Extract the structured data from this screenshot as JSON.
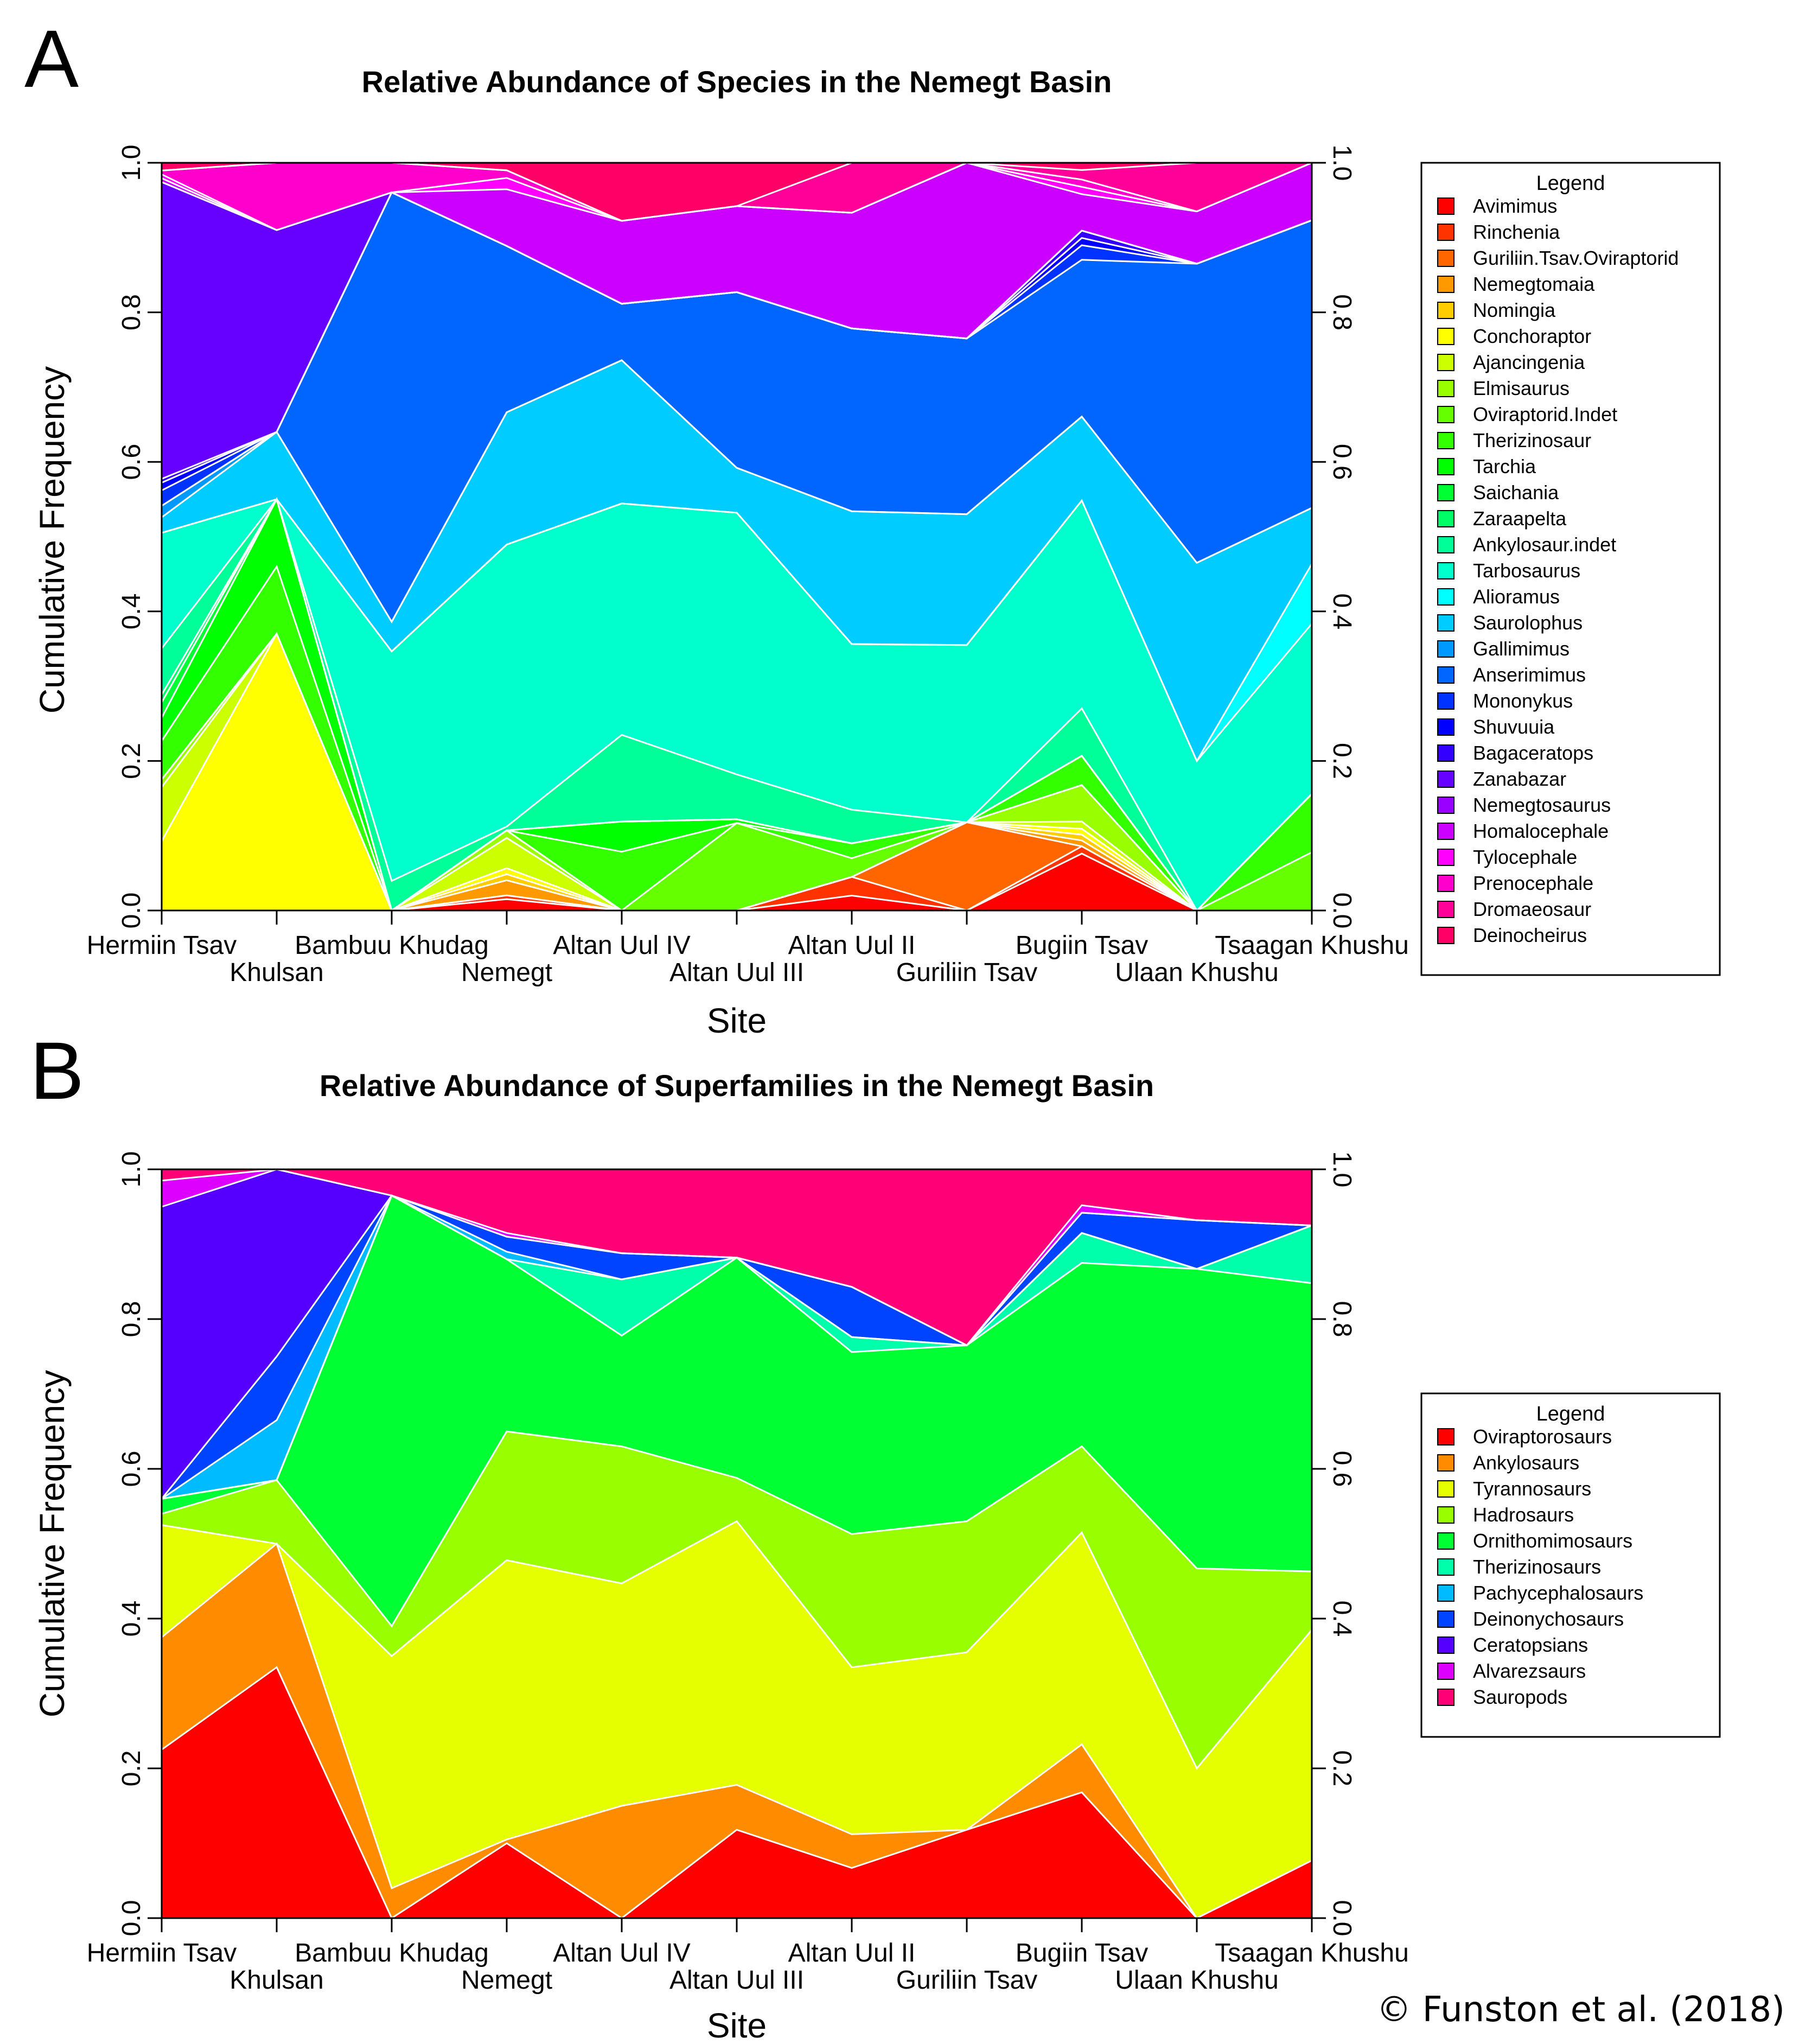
{
  "credit": "© Funston et al. (2018)",
  "chart_data": [
    {
      "panel_label": "A",
      "type": "area",
      "stacked": true,
      "title": "Relative Abundance of Species in the Nemegt Basin",
      "xlabel": "Site",
      "ylabel": "Cumulative Frequency",
      "ylim": [
        0,
        1
      ],
      "yticks": [
        "0.0",
        "0.2",
        "0.4",
        "0.6",
        "0.8",
        "1.0"
      ],
      "categories": [
        "Hermiin Tsav",
        "Khulsan",
        "Bambuu Khudag",
        "Nemegt",
        "Altan Uul IV",
        "Altan Uul III",
        "Altan Uul II",
        "Guriliin Tsav",
        "Bugiin Tsav",
        "Ulaan Khushu",
        "Tsaagan Khushu"
      ],
      "legend_title": "Legend",
      "legend_position": "right",
      "series": [
        {
          "name": "Avimimus",
          "color": "#FF0000",
          "values": [
            0,
            0,
            0,
            0.015,
            0,
            0,
            0.02,
            0,
            0.078,
            0,
            0
          ]
        },
        {
          "name": "Rinchenia",
          "color": "#FF3300",
          "values": [
            0,
            0,
            0,
            0.005,
            0,
            0,
            0.025,
            0,
            0.01,
            0,
            0
          ]
        },
        {
          "name": "Guriliin.Tsav.Oviraptorid",
          "color": "#FF6600",
          "values": [
            0,
            0,
            0,
            0,
            0,
            0,
            0,
            0.118,
            0,
            0,
            0
          ]
        },
        {
          "name": "Nemegtomaia",
          "color": "#FF9900",
          "values": [
            0,
            0,
            0,
            0.02,
            0,
            0,
            0,
            0,
            0.008,
            0,
            0
          ]
        },
        {
          "name": "Nomingia",
          "color": "#FFCC00",
          "values": [
            0,
            0,
            0,
            0.008,
            0,
            0,
            0,
            0,
            0.008,
            0,
            0
          ]
        },
        {
          "name": "Conchoraptor",
          "color": "#FFFF00",
          "values": [
            0.09,
            0.37,
            0,
            0.008,
            0,
            0,
            0,
            0,
            0.008,
            0,
            0
          ]
        },
        {
          "name": "Ajancingenia",
          "color": "#CCFF00",
          "values": [
            0.07,
            0,
            0,
            0.04,
            0,
            0,
            0,
            0,
            0.01,
            0,
            0
          ]
        },
        {
          "name": "Elmisaurus",
          "color": "#99FF00",
          "values": [
            0.01,
            0,
            0,
            0.01,
            0,
            0,
            0,
            0,
            0.05,
            0,
            0
          ]
        },
        {
          "name": "Oviraptorid.Indet",
          "color": "#66FF00",
          "values": [
            0,
            0,
            0,
            0,
            0,
            0.117,
            0.025,
            0,
            0,
            0,
            0.078
          ]
        },
        {
          "name": "Therizinosaur",
          "color": "#33FF00",
          "values": [
            0.05,
            0.09,
            0,
            0,
            0.078,
            0,
            0.02,
            0,
            0.04,
            0,
            0.078
          ]
        },
        {
          "name": "Tarchia",
          "color": "#00FF00",
          "values": [
            0.03,
            0.09,
            0,
            0,
            0.04,
            0.005,
            0,
            0,
            0,
            0,
            0
          ]
        },
        {
          "name": "Saichania",
          "color": "#00FF33",
          "values": [
            0.02,
            0,
            0,
            0,
            0,
            0,
            0,
            0,
            0,
            0,
            0
          ]
        },
        {
          "name": "Zaraapelta",
          "color": "#00FF66",
          "values": [
            0.01,
            0,
            0,
            0,
            0,
            0,
            0,
            0,
            0,
            0,
            0
          ]
        },
        {
          "name": "Ankylosaur.indet",
          "color": "#00FF99",
          "values": [
            0.06,
            0,
            0.04,
            0.005,
            0.115,
            0.06,
            0.045,
            0,
            0.065,
            0,
            0
          ]
        },
        {
          "name": "Tarbosaurus",
          "color": "#00FFCC",
          "values": [
            0.15,
            0,
            0.31,
            0.373,
            0.307,
            0.35,
            0.222,
            0.237,
            0.285,
            0.2,
            0.228
          ]
        },
        {
          "name": "Alioramus",
          "color": "#00FFFF",
          "values": [
            0,
            0,
            0,
            0,
            0,
            0,
            0,
            0,
            0,
            0,
            0.08
          ]
        },
        {
          "name": "Saurolophus",
          "color": "#00CCFF",
          "values": [
            0.02,
            0.09,
            0.04,
            0.175,
            0.19,
            0.06,
            0.178,
            0.175,
            0.115,
            0.265,
            0.075
          ]
        },
        {
          "name": "Gallimimus",
          "color": "#0099FF",
          "values": [
            0.015,
            0,
            0,
            0,
            0,
            0,
            0,
            0,
            0,
            0,
            0
          ]
        },
        {
          "name": "Anserimimus",
          "color": "#0066FF",
          "values": [
            0,
            0,
            0.58,
            0.22,
            0.075,
            0.235,
            0.245,
            0.235,
            0.215,
            0.4,
            0.385
          ]
        },
        {
          "name": "Mononykus",
          "color": "#0033FF",
          "values": [
            0.02,
            0,
            0,
            0,
            0,
            0,
            0,
            0,
            0.02,
            0,
            0
          ]
        },
        {
          "name": "Shuvuuia",
          "color": "#0000FF",
          "values": [
            0.01,
            0,
            0,
            0,
            0,
            0,
            0,
            0,
            0.01,
            0,
            0
          ]
        },
        {
          "name": "Bagaceratops",
          "color": "#3300FF",
          "values": [
            0.005,
            0,
            0,
            0,
            0,
            0,
            0,
            0,
            0.01,
            0,
            0
          ]
        },
        {
          "name": "Zanabazar",
          "color": "#6600FF",
          "values": [
            0.385,
            0.27,
            0,
            0,
            0,
            0,
            0,
            0,
            0,
            0,
            0
          ]
        },
        {
          "name": "Nemegtosaurus",
          "color": "#9900FF",
          "values": [
            0,
            0,
            0,
            0,
            0,
            0,
            0,
            0,
            0,
            0,
            0
          ]
        },
        {
          "name": "Homalocephale",
          "color": "#CC00FF",
          "values": [
            0.005,
            0,
            0,
            0.075,
            0.11,
            0.115,
            0.155,
            0.235,
            0.05,
            0.07,
            0.077
          ]
        },
        {
          "name": "Tylocephale",
          "color": "#FF00FF",
          "values": [
            0.005,
            0,
            0,
            0.015,
            0,
            0,
            0,
            0,
            0.01,
            0,
            0
          ]
        },
        {
          "name": "Prenocephale",
          "color": "#FF00CC",
          "values": [
            0.005,
            0.09,
            0.04,
            0.01,
            0,
            0,
            0,
            0,
            0.01,
            0,
            0
          ]
        },
        {
          "name": "Dromaeosaur",
          "color": "#FF0099",
          "values": [
            0,
            0,
            0,
            0,
            0,
            0,
            0.067,
            0,
            0.013,
            0.065,
            0
          ]
        },
        {
          "name": "Deinocheirus",
          "color": "#FF0066",
          "values": [
            0.01,
            0,
            0,
            0.01,
            0.077,
            0.058,
            0,
            0,
            0.01,
            0,
            0
          ]
        }
      ]
    },
    {
      "panel_label": "B",
      "type": "area",
      "stacked": true,
      "title": "Relative Abundance of Superfamilies in the Nemegt Basin",
      "xlabel": "Site",
      "ylabel": "Cumulative Frequency",
      "ylim": [
        0,
        1
      ],
      "yticks": [
        "0.0",
        "0.2",
        "0.4",
        "0.6",
        "0.8",
        "1.0"
      ],
      "categories": [
        "Hermiin Tsav",
        "Khulsan",
        "Bambuu Khudag",
        "Nemegt",
        "Altan Uul IV",
        "Altan Uul III",
        "Altan Uul II",
        "Guriliin Tsav",
        "Bugiin Tsav",
        "Ulaan Khushu",
        "Tsaagan Khushu"
      ],
      "legend_title": "Legend",
      "legend_position": "right",
      "series": [
        {
          "name": "Oviraptorosaurs",
          "color": "#FF0000",
          "values": [
            0.225,
            0.335,
            0,
            0.1,
            0,
            0.118,
            0.067,
            0.118,
            0.168,
            0,
            0.077
          ]
        },
        {
          "name": "Ankylosaurs",
          "color": "#FF8C00",
          "values": [
            0.15,
            0.165,
            0.04,
            0.005,
            0.15,
            0.06,
            0.045,
            0,
            0.064,
            0,
            0
          ]
        },
        {
          "name": "Tyrannosaurs",
          "color": "#E5FF00",
          "values": [
            0.15,
            0,
            0.31,
            0.373,
            0.297,
            0.352,
            0.223,
            0.237,
            0.283,
            0.2,
            0.308
          ]
        },
        {
          "name": "Hadrosaurs",
          "color": "#99FF00",
          "values": [
            0.015,
            0.085,
            0.04,
            0.172,
            0.183,
            0.058,
            0.178,
            0.175,
            0.115,
            0.267,
            0.078
          ]
        },
        {
          "name": "Ornithomimosaurs",
          "color": "#00FF33",
          "values": [
            0.02,
            0,
            0.575,
            0.23,
            0.148,
            0.294,
            0.243,
            0.235,
            0.245,
            0.4,
            0.385
          ]
        },
        {
          "name": "Therizinosaurs",
          "color": "#00FFAA",
          "values": [
            0,
            0,
            0,
            0,
            0.075,
            0,
            0.02,
            0,
            0.04,
            0,
            0.077
          ]
        },
        {
          "name": "Pachycephalosaurs",
          "color": "#00BBFF",
          "values": [
            0,
            0.08,
            0,
            0.01,
            0,
            0,
            0,
            0,
            0,
            0,
            0
          ]
        },
        {
          "name": "Deinonychosaurs",
          "color": "#0044FF",
          "values": [
            0,
            0.085,
            0,
            0.02,
            0.035,
            0,
            0.067,
            0,
            0.027,
            0.065,
            0
          ]
        },
        {
          "name": "Ceratopsians",
          "color": "#5500FF",
          "values": [
            0.39,
            0.25,
            0,
            0,
            0,
            0,
            0,
            0,
            0,
            0,
            0
          ]
        },
        {
          "name": "Alvarezsaurs",
          "color": "#DD00FF",
          "values": [
            0.035,
            0,
            0,
            0.005,
            0,
            0,
            0,
            0,
            0.01,
            0,
            0
          ]
        },
        {
          "name": "Sauropods",
          "color": "#FF0077",
          "values": [
            0.015,
            0,
            0.035,
            0.085,
            0.112,
            0.118,
            0.157,
            0.235,
            0.048,
            0.068,
            0.075
          ]
        }
      ]
    }
  ]
}
